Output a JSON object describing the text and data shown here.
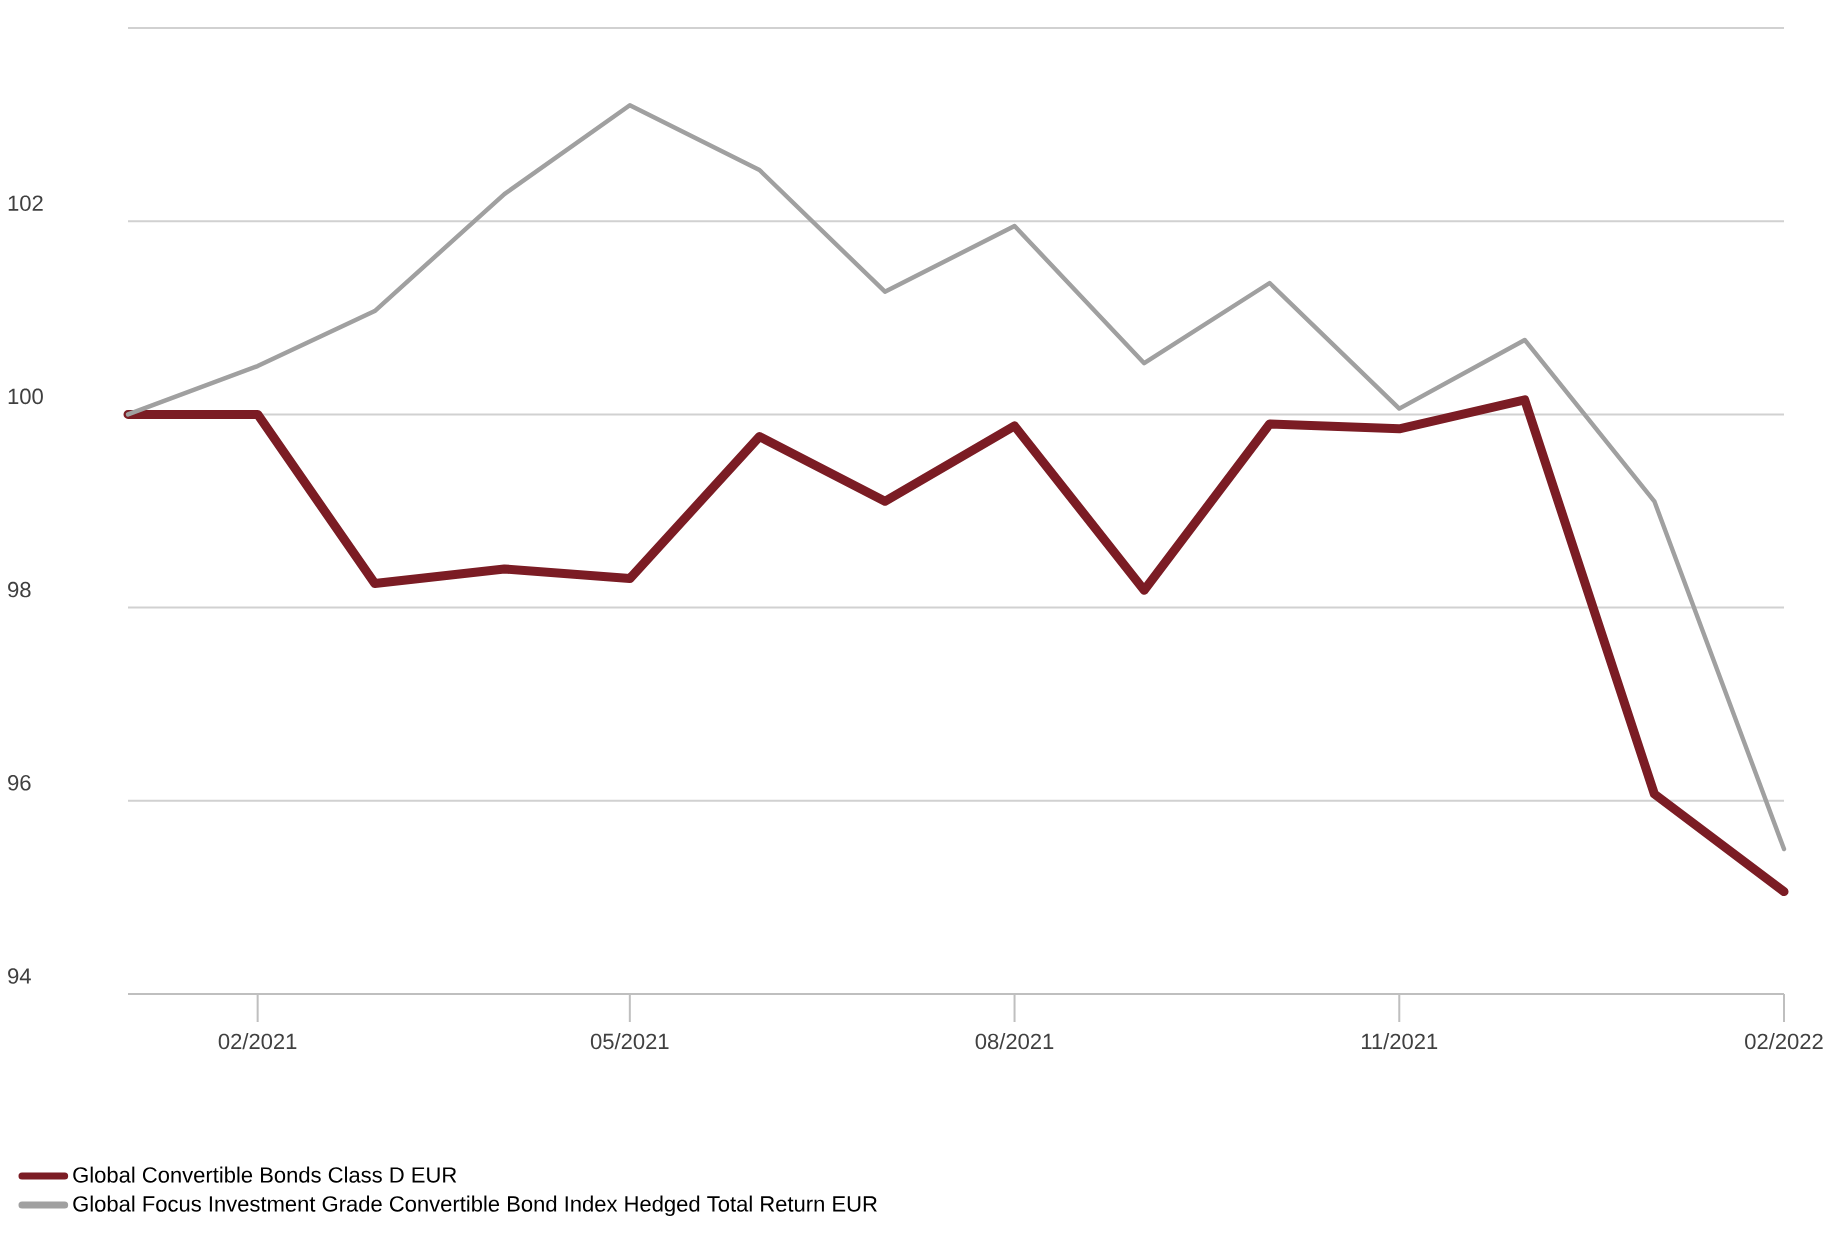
{
  "chart_data": {
    "type": "line",
    "x": [
      "2021-01",
      "2021-02",
      "2021-03",
      "2021-04",
      "2021-05",
      "2021-06",
      "2021-07",
      "2021-08",
      "2021-09",
      "2021-10",
      "2021-11",
      "2021-12",
      "2022-01",
      "2022-02"
    ],
    "series": [
      {
        "name": "Global Convertible Bonds Class D EUR",
        "color": "#7b1c24",
        "values": [
          100.0,
          100.0,
          98.25,
          98.4,
          98.3,
          99.77,
          99.1,
          99.88,
          98.18,
          99.9,
          99.85,
          100.15,
          96.07,
          95.06
        ]
      },
      {
        "name": "Global Focus Investment Grade Convertible Bond Index Hedged Total Return EUR",
        "color": "#a0a0a0",
        "values": [
          100.0,
          100.5,
          101.07,
          102.28,
          103.2,
          102.53,
          101.27,
          101.95,
          100.53,
          101.36,
          100.06,
          100.77,
          99.1,
          95.5
        ]
      }
    ],
    "xlim": [
      "2021-01",
      "2022-02"
    ],
    "xticks": [
      {
        "value": "2021-02",
        "label": "02/2021"
      },
      {
        "value": "2021-05",
        "label": "05/2021"
      },
      {
        "value": "2021-08",
        "label": "08/2021"
      },
      {
        "value": "2021-11",
        "label": "11/2021"
      },
      {
        "value": "2022-02",
        "label": "02/2022"
      }
    ],
    "ylim": [
      94,
      104
    ],
    "yticks": [
      94,
      96,
      98,
      100,
      102,
      {
        "value": 104,
        "label": null
      }
    ],
    "grid": "y",
    "legend": "bottom",
    "marker": "none",
    "line_style": "solid"
  }
}
